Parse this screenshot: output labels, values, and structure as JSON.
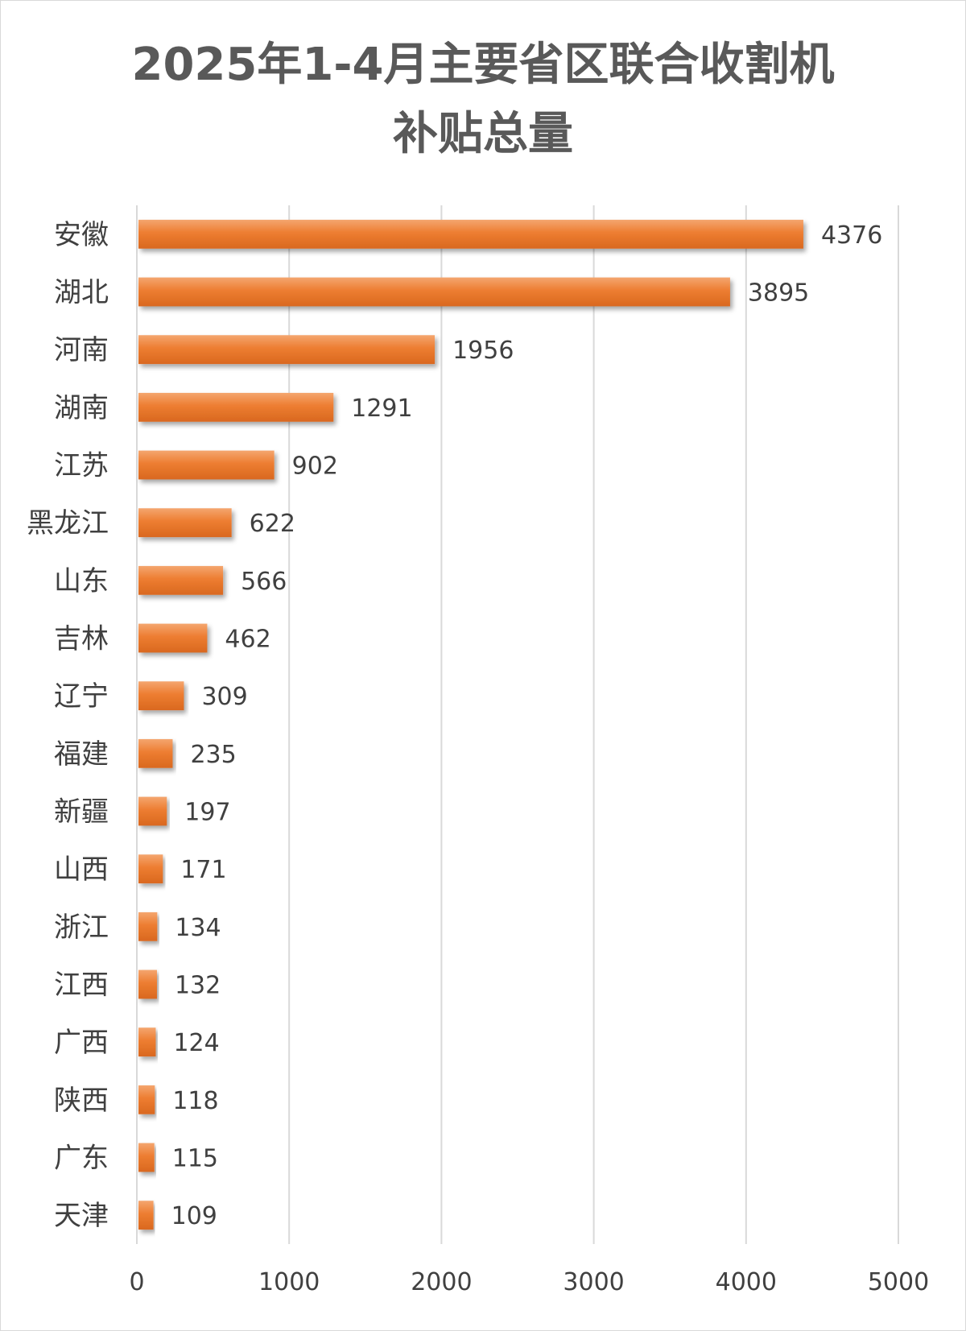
{
  "chart_data": {
    "type": "bar",
    "orientation": "horizontal",
    "title_lines": [
      "2025年1-4月主要省区联合收割机",
      "补贴总量"
    ],
    "categories": [
      "安徽",
      "湖北",
      "河南",
      "湖南",
      "江苏",
      "黑龙江",
      "山东",
      "吉林",
      "辽宁",
      "福建",
      "新疆",
      "山西",
      "浙江",
      "江西",
      "广西",
      "陕西",
      "广东",
      "天津"
    ],
    "values": [
      4376,
      3895,
      1956,
      1291,
      902,
      622,
      566,
      462,
      309,
      235,
      197,
      171,
      134,
      132,
      124,
      118,
      115,
      109
    ],
    "xlim": [
      0,
      5000
    ],
    "xticks": [
      "0",
      "1000",
      "2000",
      "3000",
      "4000",
      "5000"
    ],
    "grid": true,
    "bar_color": "#ed7d31",
    "legend": "none"
  }
}
